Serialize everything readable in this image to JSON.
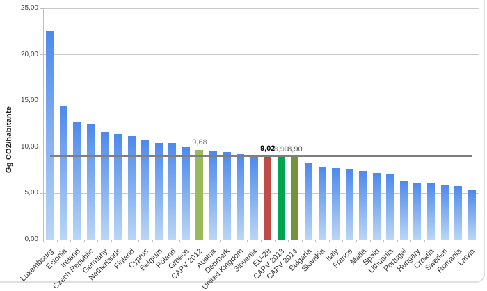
{
  "chart_data": {
    "type": "bar",
    "title": "",
    "xlabel": "",
    "ylabel": "Gg CO2/habitante",
    "ylim": [
      0,
      25
    ],
    "ytick_step": 5,
    "ytick_labels": [
      "0,00",
      "5,00",
      "10,00",
      "15,00",
      "20,00",
      "25,00"
    ],
    "grid": true,
    "legend": "none",
    "categories": [
      "Luxembourg",
      "Estonia",
      "Ireland",
      "Czech Republic",
      "Germany",
      "Netherlands",
      "Finland",
      "Cyprus",
      "Belgium",
      "Poland",
      "Greece",
      "CAPV 2012",
      "Austria",
      "Denmark",
      "United Kingdom",
      "Slovenia",
      "EU-28",
      "CAPV 2013",
      "CAPV 2014",
      "Bulgaria",
      "Slovakia",
      "Italy",
      "France",
      "Malta",
      "Spain",
      "Lithuania",
      "Portugal",
      "Hungary",
      "Croatia",
      "Sweden",
      "Romania",
      "Latvia"
    ],
    "values": [
      22.6,
      14.5,
      12.8,
      12.5,
      11.65,
      11.4,
      11.15,
      10.7,
      10.45,
      10.43,
      9.95,
      9.68,
      9.5,
      9.48,
      9.22,
      9.12,
      9.02,
      8.9,
      8.9,
      8.27,
      7.89,
      7.7,
      7.57,
      7.44,
      7.19,
      7.09,
      6.39,
      6.17,
      6.09,
      5.96,
      5.79,
      5.34
    ],
    "highlight_bars": [
      {
        "category": "CAPV 2012",
        "color": "#9BBA59",
        "label": "9,68",
        "label_color": "#808080",
        "label_bold": false
      },
      {
        "category": "EU-28",
        "color": "#BF4C49",
        "label": "9,02",
        "label_color": "#000000",
        "label_bold": true
      },
      {
        "category": "CAPV 2013",
        "color": "#00A551",
        "label": "8,90",
        "label_color": "#9A9A9A",
        "label_bold": false
      },
      {
        "category": "CAPV 2014",
        "color": "#75923C",
        "label": "8,90",
        "label_color": "#595959",
        "label_bold": false
      }
    ],
    "reference_line": {
      "value": 9.02,
      "color": "#7F7F7F"
    },
    "colors": {
      "bar_gradient_top": "#4D89EC",
      "bar_gradient_bottom": "#BAD6F5",
      "gridline": "#C9C9C9",
      "axis": "#BFBFBF",
      "tick_label": "#3F3F3F",
      "category_label": "#333333"
    }
  }
}
